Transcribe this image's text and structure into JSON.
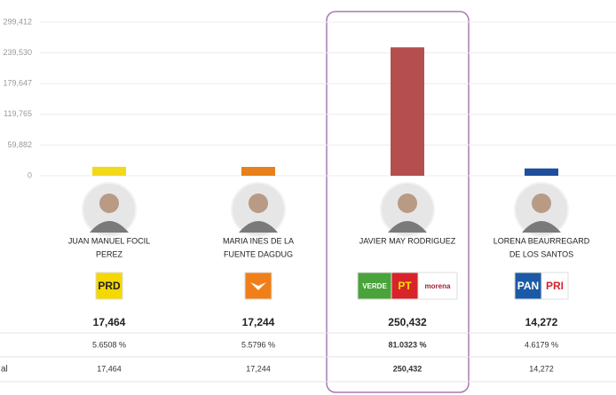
{
  "chart_data": {
    "type": "bar",
    "ylim": [
      0,
      299412
    ],
    "yticks": [
      0,
      {
        "value": 59882,
        "label": "59,882"
      },
      {
        "value": 119765,
        "label": "119,765"
      },
      {
        "value": 179647,
        "label": "179,647"
      },
      {
        "value": 239530,
        "label": "239,530"
      },
      {
        "value": 299412,
        "label": "299,412"
      }
    ],
    "grid": true,
    "categories": [
      [
        "JUAN MANUEL FOCIL",
        "PEREZ"
      ],
      [
        "MARIA INES DE LA",
        "FUENTE DAGDUG"
      ],
      [
        "JAVIER MAY RODRIGUEZ"
      ],
      [
        "LORENA BEAURREGARD",
        "DE LOS SANTOS"
      ]
    ],
    "colors": [
      "#f2d91c",
      "#e8801c",
      "#b54f4f",
      "#1f4f9c"
    ],
    "values": [
      17464,
      17244,
      250432,
      14272
    ],
    "value_labels": [
      "17,464",
      "17,244",
      "250,432",
      "14,272"
    ],
    "highlight": 2,
    "party_logos": [
      [
        {
          "name": "PRD",
          "color": "#f5d800",
          "text_color": "#222222"
        }
      ],
      [
        {
          "color": "#f07f1a"
        }
      ],
      [
        {
          "name": "VERDE",
          "color": "#4aa33b",
          "text_color": "#ffffff"
        },
        {
          "name": "PT",
          "color": "#d8232a",
          "text_color": "#f6e000"
        },
        {
          "name": "morena",
          "color": "#ffffff",
          "text_color": "#a3203a"
        }
      ],
      [
        {
          "name": "PAN",
          "color": "#1b5aa6",
          "text_color": "#ffffff"
        },
        {
          "name": "PRI",
          "color": "#ffffff",
          "text_color": "#d8232a"
        }
      ]
    ],
    "percent": {
      "values": [
        5.6508,
        5.5796,
        81.0323,
        4.6179
      ],
      "labels": [
        "5.6508 %",
        "5.5796 %",
        "81.0323 %",
        "4.6179 %"
      ]
    },
    "total": {
      "label": "al",
      "values": [
        17464,
        17244,
        250432,
        14272
      ],
      "labels": [
        "17,464",
        "17,244",
        "250,432",
        "14,272"
      ]
    }
  }
}
